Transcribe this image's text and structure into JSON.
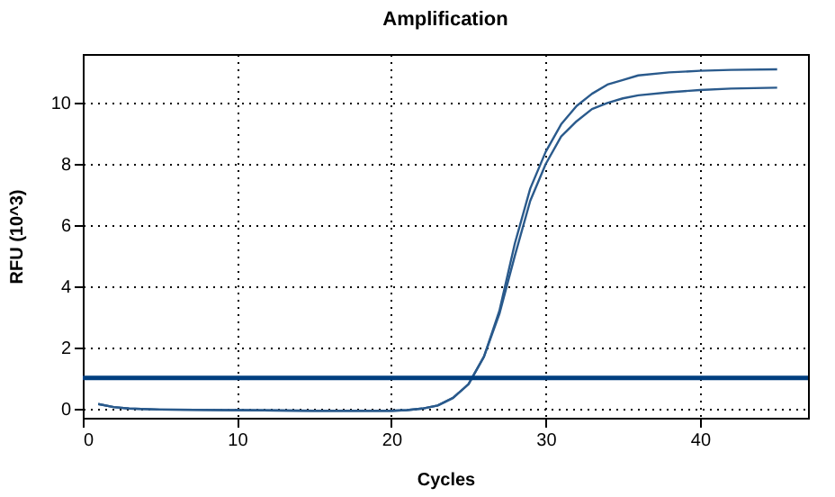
{
  "chart_data": {
    "type": "line",
    "title": "Amplification",
    "xlabel": "Cycles",
    "ylabel": "RFU (10^3)",
    "x": [
      1,
      2,
      3,
      5,
      10,
      15,
      20,
      21,
      22,
      23,
      24,
      25,
      26,
      27,
      28,
      29,
      30,
      31,
      32,
      33,
      34,
      35,
      36,
      38,
      40,
      42,
      45
    ],
    "series": [
      {
        "color": "#2a5a8c",
        "values": [
          0.15,
          0.05,
          0.0,
          -0.03,
          -0.05,
          -0.07,
          -0.07,
          -0.05,
          0.0,
          0.1,
          0.35,
          0.8,
          1.7,
          3.2,
          5.4,
          7.2,
          8.4,
          9.3,
          9.9,
          10.3,
          10.6,
          10.75,
          10.9,
          11.0,
          11.05,
          11.08,
          11.1
        ]
      },
      {
        "color": "#2a5a8c",
        "values": [
          0.15,
          0.05,
          0.0,
          -0.03,
          -0.05,
          -0.07,
          -0.07,
          -0.05,
          0.0,
          0.1,
          0.35,
          0.8,
          1.7,
          3.1,
          5.0,
          6.8,
          8.0,
          8.9,
          9.4,
          9.8,
          10.0,
          10.15,
          10.25,
          10.35,
          10.42,
          10.47,
          10.5
        ]
      }
    ],
    "ref_lines": [
      {
        "axis": "y",
        "value": 1,
        "color": "#003f7f"
      }
    ],
    "xlim": [
      0,
      47
    ],
    "xticks": [
      0,
      10,
      20,
      30,
      40
    ],
    "ylim": [
      -0.3,
      11.6
    ],
    "yticks": [
      0,
      2,
      4,
      6,
      8,
      10
    ],
    "grid": true,
    "legend": false,
    "marker": "none",
    "line_style": "solid"
  }
}
